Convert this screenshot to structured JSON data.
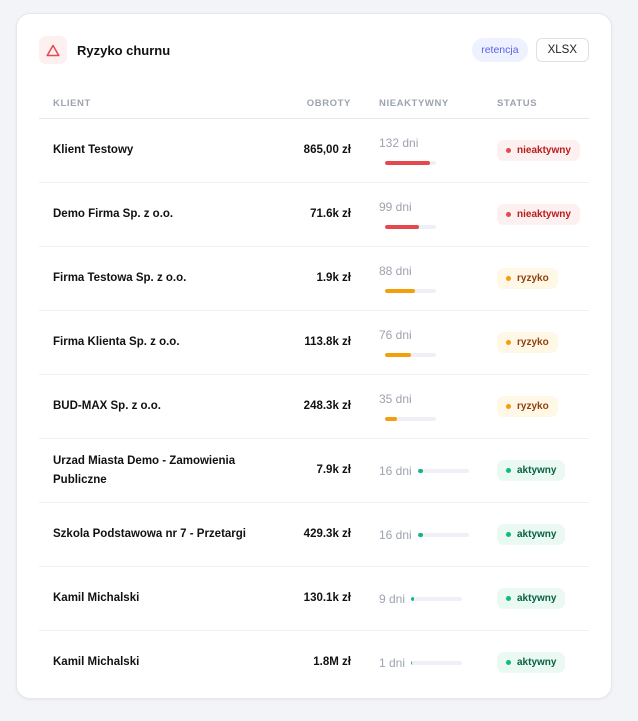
{
  "header": {
    "title": "Ryzyko churnu",
    "icon": "warning-triangle-icon",
    "tag": "retencja",
    "export_label": "XLSX"
  },
  "columns": [
    "KLIENT",
    "OBROTY",
    "NIEAKTYWNY",
    "STATUS"
  ],
  "bar_max_days": 150,
  "colors": {
    "nieaktywny": {
      "bg": "#fdf0f0",
      "fg": "#b91c1c",
      "bar": "#e5484d"
    },
    "ryzyko": {
      "bg": "#fff8e6",
      "fg": "#92400e",
      "bar": "#f59e0b"
    },
    "aktywny": {
      "bg": "#eafaf2",
      "fg": "#065f46",
      "bar": "#10b981"
    }
  },
  "rows": [
    {
      "client": "Klient Testowy",
      "turnover": "865,00 zł",
      "days_label": "132 dni",
      "days": 132,
      "status": "nieaktywny"
    },
    {
      "client": "Demo Firma Sp. z o.o.",
      "turnover": "71.6k zł",
      "days_label": "99 dni",
      "days": 99,
      "status": "nieaktywny"
    },
    {
      "client": "Firma Testowa Sp. z o.o.",
      "turnover": "1.9k zł",
      "days_label": "88 dni",
      "days": 88,
      "status": "ryzyko"
    },
    {
      "client": "Firma Klienta Sp. z o.o.",
      "turnover": "113.8k zł",
      "days_label": "76 dni",
      "days": 76,
      "status": "ryzyko"
    },
    {
      "client": "BUD-MAX Sp. z o.o.",
      "turnover": "248.3k zł",
      "days_label": "35 dni",
      "days": 35,
      "status": "ryzyko"
    },
    {
      "client": "Urzad Miasta Demo - Zamowienia Publiczne",
      "turnover": "7.9k zł",
      "days_label": "16 dni",
      "days": 16,
      "status": "aktywny"
    },
    {
      "client": "Szkola Podstawowa nr 7 - Przetargi",
      "turnover": "429.3k zł",
      "days_label": "16 dni",
      "days": 16,
      "status": "aktywny"
    },
    {
      "client": "Kamil Michalski",
      "turnover": "130.1k zł",
      "days_label": "9 dni",
      "days": 9,
      "status": "aktywny"
    },
    {
      "client": "Kamil Michalski",
      "turnover": "1.8M zł",
      "days_label": "1 dni",
      "days": 1,
      "status": "aktywny"
    }
  ]
}
